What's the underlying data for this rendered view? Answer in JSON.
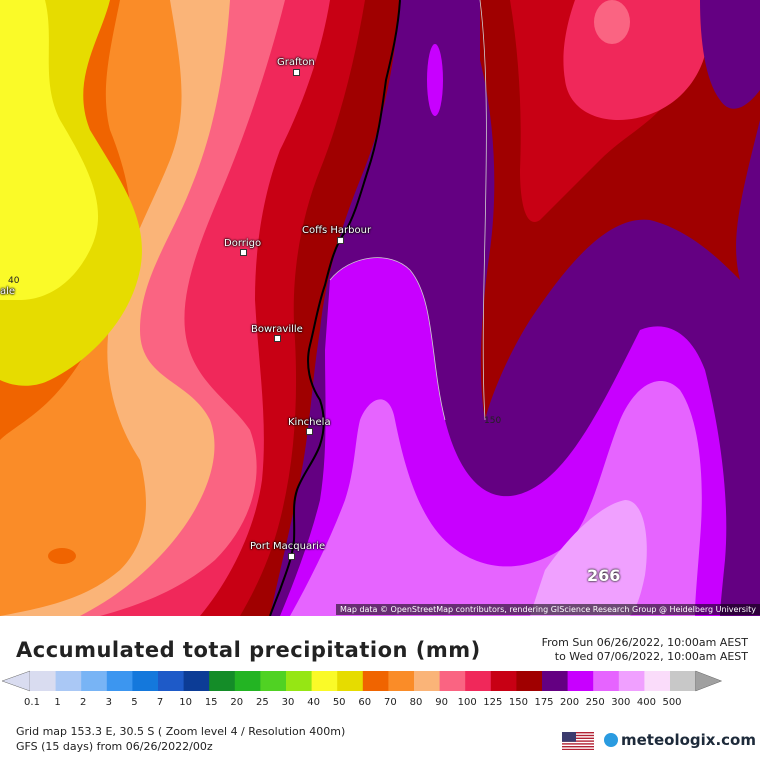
{
  "map": {
    "cities": [
      {
        "name": "Grafton"
      },
      {
        "name": "Coffs Harbour"
      },
      {
        "name": "Dorrigo"
      },
      {
        "name": "Bowraville"
      },
      {
        "name": "Kinchela"
      },
      {
        "name": "Port Macquarie"
      }
    ],
    "edge_label": "ale",
    "contour_labels": [
      "40",
      "150",
      "266"
    ],
    "attribution": "Map data © OpenStreetMap contributors, rendering GIScience Research Group @ Heidelberg University"
  },
  "legend": {
    "title": "Accumulated total precipitation (mm)",
    "from": "From Sun 06/26/2022, 10:00am AEST",
    "to": "to Wed 07/06/2022, 10:00am AEST",
    "ticks": [
      "0.1",
      "1",
      "2",
      "3",
      "5",
      "7",
      "10",
      "15",
      "20",
      "25",
      "30",
      "40",
      "50",
      "60",
      "70",
      "80",
      "90",
      "100",
      "125",
      "150",
      "175",
      "200",
      "250",
      "300",
      "400",
      "500"
    ],
    "colors": [
      "#d9dcf0",
      "#aac8f5",
      "#78b4f5",
      "#3c96f0",
      "#1478dc",
      "#1e5ac8",
      "#0c3c96",
      "#148c28",
      "#23b423",
      "#50d223",
      "#96e614",
      "#fafa28",
      "#e6dc00",
      "#f06400",
      "#fa8c28",
      "#fab478",
      "#fa6482",
      "#f0285a",
      "#c80014",
      "#a00000",
      "#640082",
      "#c800ff",
      "#e664ff",
      "#f0a0ff",
      "#fadcfa",
      "#c8c8c8"
    ]
  },
  "footer": {
    "grid": "Grid map 153.3 E, 30.5 S ( Zoom level 4 / Resolution 400m)",
    "model": "GFS (15 days) from 06/26/2022/00z",
    "brand": "meteologix.com"
  }
}
